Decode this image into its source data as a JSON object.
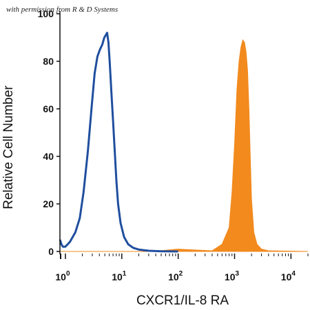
{
  "watermark": "with permission from R & D Systems",
  "chart_data": {
    "type": "area",
    "xlabel": "CXCR1/IL-8 RA",
    "ylabel": "Relative Cell Number",
    "x_scale": "log",
    "xlim": [
      0.8,
      20000
    ],
    "ylim": [
      0,
      100
    ],
    "y_ticks": [
      0,
      20,
      40,
      60,
      80,
      100
    ],
    "x_ticks": [
      {
        "base": "10",
        "exp": "0",
        "value": 1
      },
      {
        "base": "10",
        "exp": "1",
        "value": 10
      },
      {
        "base": "10",
        "exp": "2",
        "value": 100
      },
      {
        "base": "10",
        "exp": "3",
        "value": 1000
      },
      {
        "base": "10",
        "exp": "4",
        "value": 10000
      }
    ],
    "grid": false,
    "series": [
      {
        "style": "outline",
        "color": "#1f4e9e",
        "x": [
          0.8,
          0.85,
          0.9,
          1.0,
          1.2,
          1.5,
          1.8,
          2.1,
          2.5,
          2.9,
          3.3,
          3.7,
          4.1,
          4.5,
          4.9,
          5.2,
          5.5,
          5.8,
          6.1,
          6.5,
          7.0,
          7.5,
          8.0,
          8.6,
          9.5,
          11,
          13,
          16,
          20,
          30,
          50,
          100
        ],
        "y": [
          5,
          3,
          2,
          2,
          4,
          8,
          14,
          25,
          42,
          60,
          75,
          82,
          85,
          87,
          90,
          91,
          92,
          88,
          80,
          68,
          55,
          42,
          30,
          20,
          12,
          6,
          3,
          1.5,
          0.8,
          0.3,
          0.1,
          0
        ]
      },
      {
        "style": "filled",
        "color": "#f28a1e",
        "x": [
          0.8,
          30,
          60,
          100,
          200,
          400,
          600,
          800,
          900,
          1000,
          1100,
          1200,
          1300,
          1400,
          1500,
          1600,
          1700,
          1800,
          1900,
          2000,
          2200,
          2500,
          3000,
          4000,
          20000
        ],
        "y": [
          0,
          0,
          0.5,
          1,
          0.6,
          0.3,
          3,
          10,
          25,
          45,
          68,
          80,
          86,
          89,
          88,
          84,
          76,
          60,
          40,
          22,
          8,
          3,
          1,
          0.3,
          0
        ]
      }
    ]
  }
}
